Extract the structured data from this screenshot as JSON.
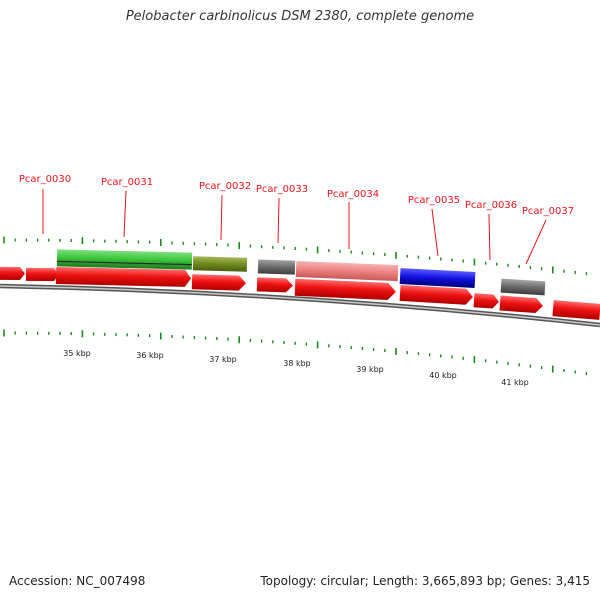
{
  "title": "Pelobacter carbinolicus DSM 2380, complete genome",
  "footer": {
    "accession": "Accession: NC_007498",
    "topology": "Topology: circular; Length: 3,665,893 bp; Genes: 3,415"
  },
  "colors": {
    "label_red": "#e8141a",
    "feature_green": "#3cc83c",
    "feature_olive": "#6f8a1e",
    "feature_gray": "#6a6a6a",
    "feature_pink": "#ee8080",
    "feature_blue": "#1010e0",
    "cds_red": "#ee1111",
    "backbone": "#8a8a8a",
    "tick": "#1a8a1a"
  },
  "scale_labels": [
    "35 kbp",
    "36 kbp",
    "37 kbp",
    "38 kbp",
    "39 kbp",
    "40 kbp",
    "41 kbp"
  ],
  "gene_labels": [
    "Pcar_0030",
    "Pcar_0031",
    "Pcar_0032",
    "Pcar_0033",
    "Pcar_0034",
    "Pcar_0035",
    "Pcar_0036",
    "Pcar_0037"
  ]
}
